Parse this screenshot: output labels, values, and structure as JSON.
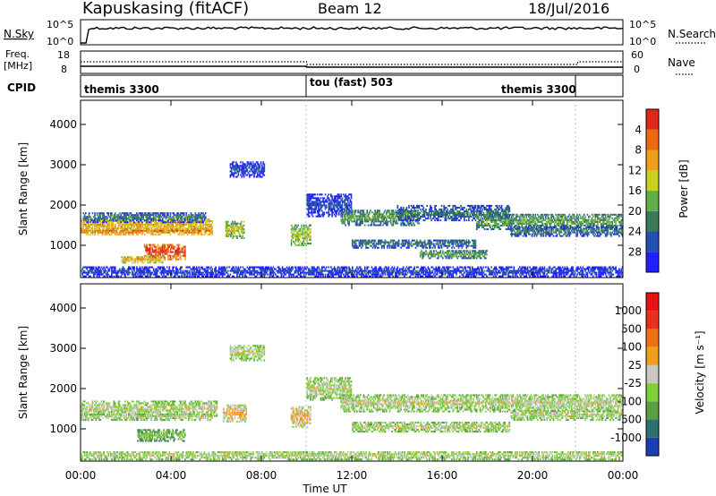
{
  "header": {
    "site": "Kapuskasing (fitACF)",
    "beam": "Beam 12",
    "date": "18/Jul/2016"
  },
  "top_panels": {
    "nsky": {
      "label": "N.Sky",
      "left_ticks": [
        "10^5",
        "10^0"
      ],
      "right_ticks": [
        "10^5",
        "10^0"
      ],
      "right_label": "N.Search"
    },
    "freq": {
      "label_line1": "Freq.",
      "label_line2": "[MHz]",
      "left_ticks": [
        "18",
        "8"
      ],
      "right_ticks": [
        "60",
        "0"
      ],
      "right_label": "Nave"
    },
    "cpid": {
      "label": "CPID",
      "segments": [
        {
          "label": "themis 3300",
          "start": 0,
          "end": 10
        },
        {
          "label": "tou (fast) 503",
          "start": 10,
          "end": 22
        },
        {
          "label": "themis 3300",
          "start": 22,
          "end": 24
        }
      ]
    }
  },
  "chart_data": [
    {
      "type": "heatmap",
      "quantity": "Power",
      "ylabel": "Slant Range [km]",
      "xlabel": "Time UT",
      "x_ticks": [
        "00:00",
        "04:00",
        "08:00",
        "12:00",
        "16:00",
        "20:00",
        "00:00"
      ],
      "xlim": [
        0,
        24
      ],
      "ylim": [
        200,
        4600
      ],
      "y_ticks": [
        1000,
        2000,
        3000,
        4000
      ],
      "colorbar": {
        "label": "Power [dB]",
        "ticks": [
          "4",
          "8",
          "12",
          "16",
          "20",
          "24",
          "28"
        ],
        "colors": [
          "#1f1fff",
          "#2050b0",
          "#3c7a58",
          "#60b04a",
          "#c8d21e",
          "#f0a018",
          "#ee6a10",
          "#e02818"
        ]
      },
      "bands": [
        {
          "t0": 0.0,
          "t1": 5.8,
          "r": 1500,
          "w": 170,
          "level": 5
        },
        {
          "t0": 0.0,
          "t1": 5.8,
          "r": 1350,
          "w": 80,
          "level": 6
        },
        {
          "t0": 0.1,
          "t1": 5.5,
          "r": 1700,
          "w": 130,
          "level": 2
        },
        {
          "t0": 2.8,
          "t1": 4.6,
          "r": 850,
          "w": 200,
          "level": 7
        },
        {
          "t0": 1.8,
          "t1": 3.6,
          "r": 650,
          "w": 80,
          "level": 5
        },
        {
          "t0": 6.4,
          "t1": 7.2,
          "r": 1400,
          "w": 220,
          "level": 4
        },
        {
          "t0": 6.6,
          "t1": 8.1,
          "r": 2900,
          "w": 200,
          "level": 1
        },
        {
          "t0": 9.3,
          "t1": 10.2,
          "r": 1250,
          "w": 250,
          "level": 4
        },
        {
          "t0": 10.0,
          "t1": 12.0,
          "r": 2000,
          "w": 280,
          "level": 1
        },
        {
          "t0": 11.5,
          "t1": 15.0,
          "r": 1700,
          "w": 200,
          "level": 3
        },
        {
          "t0": 14.0,
          "t1": 19.0,
          "r": 1800,
          "w": 180,
          "level": 2
        },
        {
          "t0": 12.0,
          "t1": 17.5,
          "r": 1050,
          "w": 110,
          "level": 2
        },
        {
          "t0": 15.0,
          "t1": 18.0,
          "r": 780,
          "w": 100,
          "level": 3
        },
        {
          "t0": 17.5,
          "t1": 24.0,
          "r": 1600,
          "w": 200,
          "level": 3
        },
        {
          "t0": 19.0,
          "t1": 24.0,
          "r": 1350,
          "w": 120,
          "level": 2
        },
        {
          "t0": 0.0,
          "t1": 24.0,
          "r": 350,
          "w": 120,
          "level": 1
        }
      ]
    },
    {
      "type": "heatmap",
      "quantity": "Velocity",
      "ylabel": "Slant Range [km]",
      "xlabel": "Time UT",
      "x_ticks": [
        "00:00",
        "04:00",
        "08:00",
        "12:00",
        "16:00",
        "20:00",
        "00:00"
      ],
      "xlim": [
        0,
        24
      ],
      "ylim": [
        200,
        4600
      ],
      "y_ticks": [
        1000,
        2000,
        3000,
        4000
      ],
      "colorbar": {
        "label": "Velocity [m s⁻¹]",
        "ticks": [
          "1000",
          "500",
          "100",
          "25",
          "-25",
          "-100",
          "-500",
          "-1000"
        ],
        "colors": [
          "#1a3fb0",
          "#2c7070",
          "#5aa040",
          "#7ed03a",
          "#c8c8c0",
          "#f0a018",
          "#ee7010",
          "#e8301a",
          "#e81010"
        ]
      },
      "bands": [
        {
          "t0": 0.0,
          "t1": 6.0,
          "r": 1500,
          "w": 180,
          "level": 4
        },
        {
          "t0": 0.0,
          "t1": 5.8,
          "r": 1300,
          "w": 80,
          "level": 4
        },
        {
          "t0": 2.5,
          "t1": 4.6,
          "r": 850,
          "w": 150,
          "level": 3
        },
        {
          "t0": 6.3,
          "t1": 7.3,
          "r": 1400,
          "w": 220,
          "level": 5
        },
        {
          "t0": 9.3,
          "t1": 10.2,
          "r": 1300,
          "w": 250,
          "level": 5
        },
        {
          "t0": 10.0,
          "t1": 12.0,
          "r": 2000,
          "w": 280,
          "level": 4
        },
        {
          "t0": 11.5,
          "t1": 24.0,
          "r": 1650,
          "w": 220,
          "level": 4
        },
        {
          "t0": 12.0,
          "t1": 19.0,
          "r": 1050,
          "w": 120,
          "level": 4
        },
        {
          "t0": 19.0,
          "t1": 24.0,
          "r": 1350,
          "w": 130,
          "level": 4
        },
        {
          "t0": 6.6,
          "t1": 8.1,
          "r": 2900,
          "w": 200,
          "level": 4
        },
        {
          "t0": 0.0,
          "t1": 24.0,
          "r": 350,
          "w": 110,
          "level": 4
        }
      ]
    }
  ]
}
